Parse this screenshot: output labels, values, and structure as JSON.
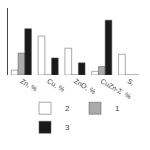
{
  "chart_data": {
    "type": "bar",
    "categories": [
      "Zn, %",
      "Cu, %",
      "ZnO, %",
      "CuZn-Σ, %",
      "S,"
    ],
    "series": [
      {
        "name": "2",
        "color": "#ffffff",
        "values": [
          4,
          32,
          22,
          3,
          17
        ]
      },
      {
        "name": "1",
        "color": "#aaaaaa",
        "values": [
          18,
          0,
          0,
          7,
          0
        ]
      },
      {
        "name": "3",
        "color": "#1a1a1a",
        "values": [
          38,
          14,
          10,
          45,
          0
        ]
      }
    ],
    "ylim": [
      0,
      55
    ],
    "tick_labels": "x",
    "grid": false,
    "legend": "bottom"
  }
}
